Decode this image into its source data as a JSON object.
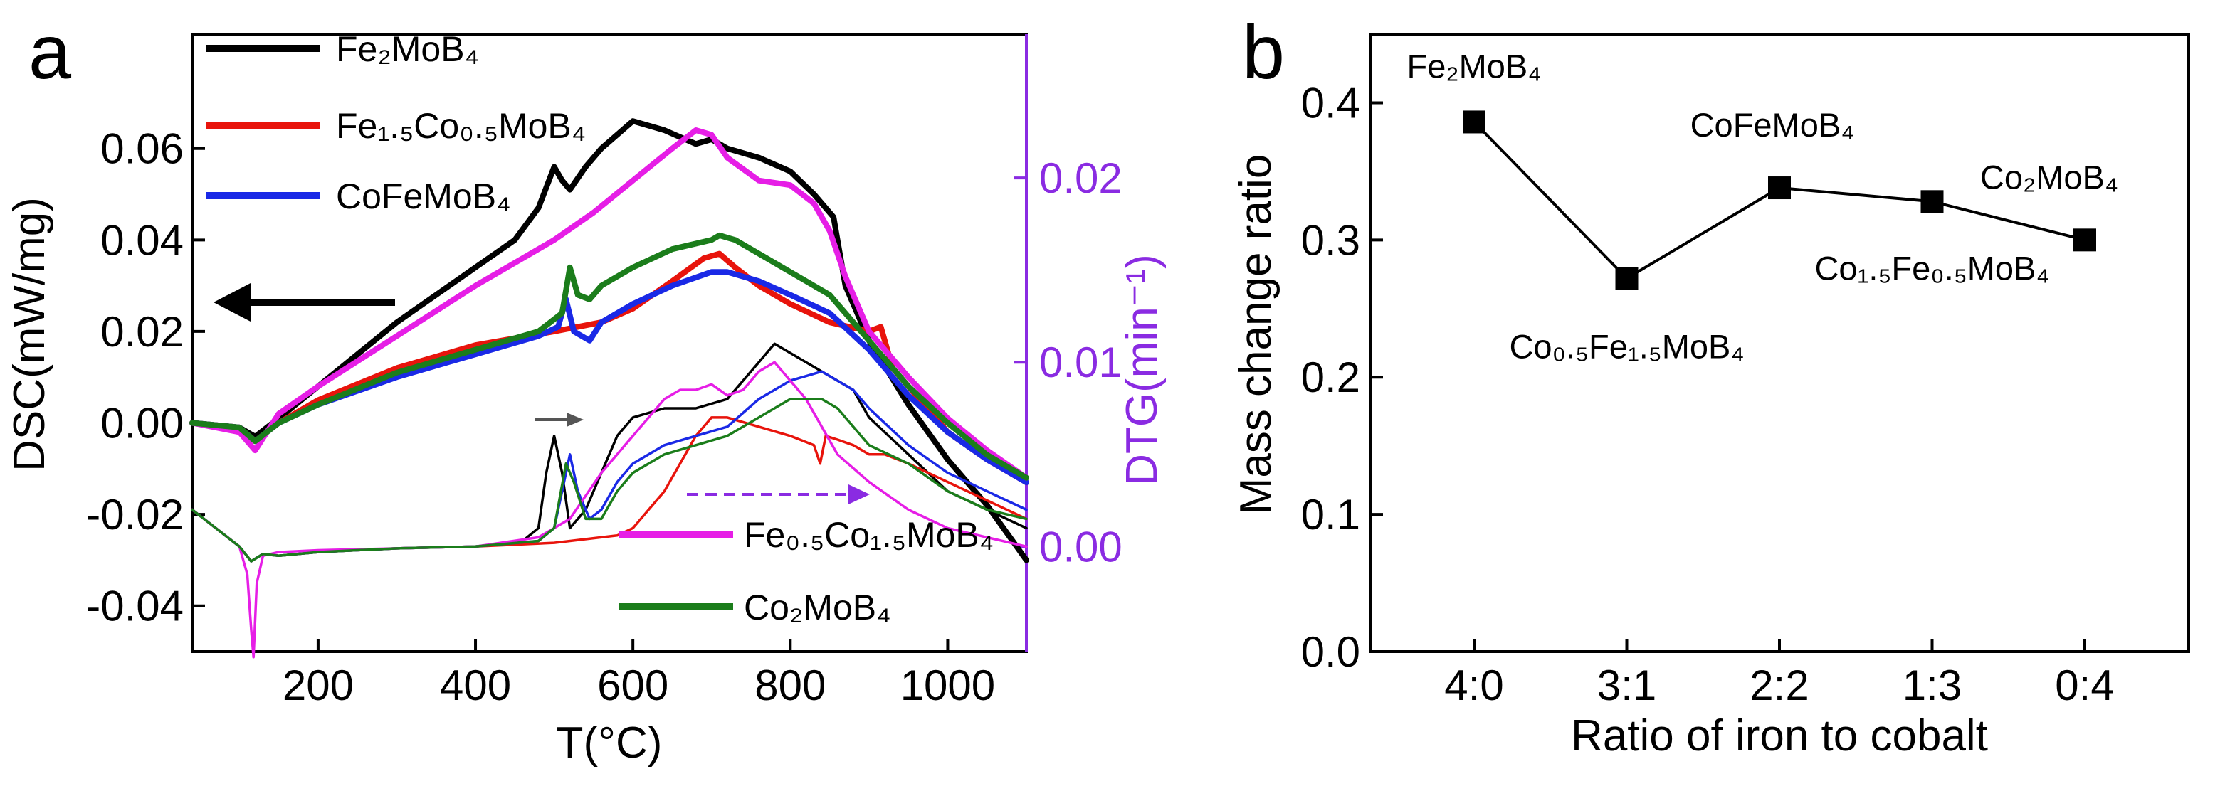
{
  "figure": {
    "panels": [
      "a",
      "b"
    ]
  },
  "colors": {
    "black": "#000000",
    "red": "#e8140c",
    "blue": "#1a29e6",
    "magenta": "#e61ee6",
    "green": "#1b7d1b",
    "dtg_axis": "#8a2be2"
  },
  "chart_data": [
    {
      "panel": "a",
      "type": "line",
      "xlabel": "T(°C)",
      "ylabel": "DSC(mW/mg)",
      "y2label": "DTG(min⁻¹)",
      "xlim": [
        40,
        1100
      ],
      "ylim": [
        -0.05,
        0.085
      ],
      "y2lim": [
        -0.0057,
        0.0278
      ],
      "x_ticks": [
        200,
        400,
        600,
        800,
        1000
      ],
      "y_ticks": [
        -0.04,
        -0.02,
        0.0,
        0.02,
        0.04,
        0.06
      ],
      "y2_ticks": [
        0.0,
        0.01,
        0.02
      ],
      "legend": [
        "Fe₂MoB₄",
        "Fe₁.₅Co₀.₅MoB₄",
        "CoFeMoB₄",
        "Fe₀.₅Co₁.₅MoB₄",
        "Co₂MoB₄"
      ],
      "annotations": [
        {
          "text": "arrow left",
          "meaning": "thick curves read on left DSC axis"
        },
        {
          "text": "arrow right",
          "meaning": "thin curves read on right DTG axis"
        }
      ],
      "series": [
        {
          "name": "Fe2MoB4",
          "kind": "DSC",
          "color": "black",
          "x": [
            40,
            100,
            120,
            150,
            200,
            300,
            400,
            450,
            480,
            500,
            510,
            520,
            540,
            560,
            600,
            640,
            680,
            700,
            720,
            760,
            800,
            830,
            855,
            860,
            870,
            900,
            950,
            1000,
            1050,
            1100
          ],
          "y": [
            0.0,
            -0.001,
            -0.003,
            0.001,
            0.008,
            0.022,
            0.034,
            0.04,
            0.047,
            0.056,
            0.053,
            0.051,
            0.056,
            0.06,
            0.066,
            0.064,
            0.061,
            0.062,
            0.06,
            0.058,
            0.055,
            0.05,
            0.045,
            0.04,
            0.03,
            0.018,
            0.004,
            -0.008,
            -0.018,
            -0.03
          ]
        },
        {
          "name": "Fe1.5Co0.5MoB4",
          "kind": "DSC",
          "color": "red",
          "x": [
            40,
            100,
            120,
            150,
            200,
            300,
            400,
            500,
            560,
            600,
            650,
            690,
            710,
            730,
            760,
            800,
            850,
            900,
            915,
            930,
            960,
            1000,
            1050,
            1100
          ],
          "y": [
            0.0,
            -0.001,
            -0.004,
            0.0,
            0.005,
            0.012,
            0.017,
            0.02,
            0.022,
            0.025,
            0.031,
            0.036,
            0.037,
            0.034,
            0.03,
            0.026,
            0.022,
            0.02,
            0.021,
            0.012,
            0.006,
            -0.002,
            -0.008,
            -0.013
          ]
        },
        {
          "name": "CoFeMoB4",
          "kind": "DSC",
          "color": "blue",
          "x": [
            40,
            100,
            120,
            150,
            200,
            300,
            400,
            480,
            505,
            515,
            525,
            545,
            560,
            600,
            650,
            700,
            720,
            760,
            800,
            850,
            900,
            950,
            1000,
            1050,
            1100
          ],
          "y": [
            0.0,
            -0.001,
            -0.004,
            0.0,
            0.004,
            0.01,
            0.015,
            0.019,
            0.021,
            0.027,
            0.02,
            0.018,
            0.022,
            0.026,
            0.03,
            0.033,
            0.033,
            0.031,
            0.028,
            0.024,
            0.016,
            0.006,
            -0.002,
            -0.008,
            -0.013
          ]
        },
        {
          "name": "Fe0.5Co1.5MoB4",
          "kind": "DSC",
          "color": "magenta",
          "x": [
            40,
            100,
            120,
            150,
            200,
            300,
            400,
            500,
            550,
            600,
            650,
            680,
            700,
            720,
            760,
            800,
            830,
            850,
            870,
            900,
            950,
            1000,
            1050,
            1100
          ],
          "y": [
            0.0,
            -0.002,
            -0.006,
            0.002,
            0.008,
            0.019,
            0.03,
            0.04,
            0.046,
            0.053,
            0.06,
            0.064,
            0.063,
            0.058,
            0.053,
            0.052,
            0.048,
            0.042,
            0.032,
            0.02,
            0.01,
            0.001,
            -0.006,
            -0.012
          ]
        },
        {
          "name": "Co2MoB4",
          "kind": "DSC",
          "color": "green",
          "x": [
            40,
            100,
            120,
            150,
            200,
            300,
            400,
            480,
            510,
            520,
            530,
            545,
            560,
            600,
            650,
            700,
            710,
            730,
            760,
            800,
            850,
            900,
            950,
            1000,
            1050,
            1100
          ],
          "y": [
            0.0,
            -0.001,
            -0.004,
            0.0,
            0.004,
            0.011,
            0.016,
            0.02,
            0.024,
            0.034,
            0.028,
            0.027,
            0.03,
            0.034,
            0.038,
            0.04,
            0.041,
            0.04,
            0.037,
            0.033,
            0.028,
            0.018,
            0.008,
            0.0,
            -0.007,
            -0.012
          ]
        },
        {
          "name": "Fe2MoB4",
          "kind": "DTG",
          "color": "black",
          "x": [
            40,
            100,
            115,
            130,
            150,
            200,
            300,
            400,
            460,
            480,
            490,
            500,
            510,
            520,
            540,
            560,
            580,
            600,
            640,
            680,
            720,
            760,
            780,
            800,
            820,
            840,
            860,
            880,
            900,
            950,
            1000,
            1050,
            1100
          ],
          "y": [
            0.002,
            0.0,
            -0.0008,
            -0.0004,
            -0.0005,
            -0.0003,
            -0.0001,
            0.0,
            0.0003,
            0.001,
            0.004,
            0.006,
            0.004,
            0.001,
            0.002,
            0.004,
            0.006,
            0.007,
            0.0075,
            0.0075,
            0.008,
            0.01,
            0.011,
            0.0105,
            0.01,
            0.0095,
            0.009,
            0.0085,
            0.007,
            0.005,
            0.003,
            0.002,
            0.001
          ]
        },
        {
          "name": "Fe1.5Co0.5MoB4",
          "kind": "DTG",
          "color": "red",
          "x": [
            40,
            100,
            115,
            130,
            150,
            200,
            300,
            400,
            500,
            580,
            600,
            640,
            680,
            700,
            720,
            760,
            800,
            830,
            838,
            845,
            860,
            880,
            900,
            920,
            950,
            1000,
            1050,
            1100
          ],
          "y": [
            0.002,
            0.0,
            -0.0008,
            -0.0004,
            -0.0005,
            -0.0003,
            -0.0001,
            0.0,
            0.0002,
            0.0006,
            0.001,
            0.003,
            0.006,
            0.007,
            0.007,
            0.0065,
            0.006,
            0.0055,
            0.0045,
            0.006,
            0.0058,
            0.0055,
            0.005,
            0.005,
            0.0045,
            0.0035,
            0.0025,
            0.0015
          ]
        },
        {
          "name": "CoFeMoB4",
          "kind": "DTG",
          "color": "blue",
          "x": [
            40,
            100,
            115,
            130,
            150,
            200,
            300,
            400,
            480,
            500,
            510,
            520,
            530,
            545,
            560,
            580,
            600,
            640,
            680,
            720,
            760,
            800,
            840,
            860,
            880,
            900,
            950,
            1000,
            1050,
            1100
          ],
          "y": [
            0.002,
            0.0,
            -0.0008,
            -0.0004,
            -0.0005,
            -0.0003,
            -0.0001,
            0.0,
            0.0003,
            0.001,
            0.003,
            0.005,
            0.003,
            0.0015,
            0.002,
            0.0035,
            0.0045,
            0.0055,
            0.006,
            0.0065,
            0.008,
            0.009,
            0.0095,
            0.009,
            0.0085,
            0.0075,
            0.0055,
            0.004,
            0.003,
            0.002
          ]
        },
        {
          "name": "Fe0.5Co1.5MoB4",
          "kind": "DTG",
          "color": "magenta",
          "x": [
            40,
            100,
            110,
            115,
            118,
            122,
            130,
            150,
            200,
            300,
            400,
            480,
            520,
            560,
            600,
            640,
            660,
            680,
            700,
            720,
            740,
            760,
            780,
            800,
            820,
            840,
            860,
            900,
            950,
            1000,
            1050,
            1100
          ],
          "y": [
            0.002,
            0.0,
            -0.0015,
            -0.0045,
            -0.006,
            -0.002,
            -0.0005,
            -0.0003,
            -0.0002,
            -0.0001,
            0.0,
            0.0005,
            0.0015,
            0.004,
            0.006,
            0.008,
            0.0085,
            0.0085,
            0.0088,
            0.0082,
            0.0085,
            0.0095,
            0.01,
            0.009,
            0.008,
            0.0065,
            0.005,
            0.0035,
            0.002,
            0.001,
            0.0005,
            0.0
          ]
        },
        {
          "name": "Co2MoB4",
          "kind": "DTG",
          "color": "green",
          "x": [
            40,
            100,
            115,
            130,
            150,
            200,
            300,
            400,
            480,
            500,
            515,
            525,
            540,
            560,
            580,
            600,
            640,
            680,
            720,
            760,
            800,
            840,
            860,
            880,
            900,
            950,
            1000,
            1050,
            1100
          ],
          "y": [
            0.002,
            0.0,
            -0.0008,
            -0.0004,
            -0.0005,
            -0.0003,
            -0.0001,
            0.0,
            0.0003,
            0.001,
            0.0045,
            0.0035,
            0.0015,
            0.0015,
            0.003,
            0.004,
            0.005,
            0.0055,
            0.006,
            0.007,
            0.008,
            0.008,
            0.0075,
            0.0065,
            0.0055,
            0.0045,
            0.003,
            0.002,
            0.0015
          ]
        }
      ]
    },
    {
      "panel": "b",
      "type": "line",
      "xlabel": "Ratio of iron to cobalt",
      "ylabel": "Mass change ratio",
      "categories": [
        "4:0",
        "3:1",
        "2:2",
        "1:3",
        "0:4"
      ],
      "values": [
        0.386,
        0.272,
        0.338,
        0.328,
        0.3
      ],
      "ylim": [
        0.0,
        0.45
      ],
      "y_ticks": [
        0.0,
        0.1,
        0.2,
        0.3,
        0.4
      ],
      "point_labels": [
        "Fe₂MoB₄",
        "Co₀.₅Fe₁.₅MoB₄",
        "CoFeMoB₄",
        "Co₁.₅Fe₀.₅MoB₄",
        "Co₂MoB₄"
      ],
      "marker": "square",
      "color": "black"
    }
  ]
}
